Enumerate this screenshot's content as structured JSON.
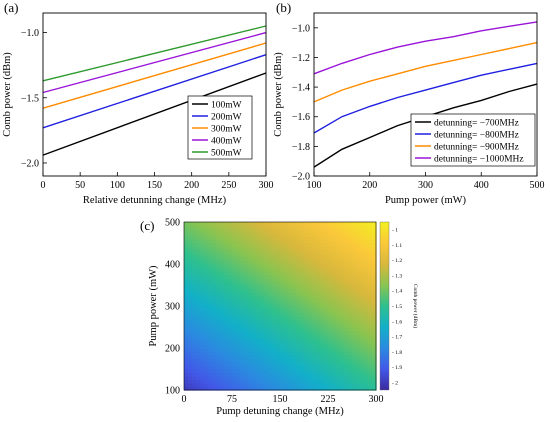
{
  "chart_data": [
    {
      "id": "a",
      "panel_label": "(a)",
      "type": "line",
      "xlabel": "Relative detunning change (MHz)",
      "ylabel": "Comb power  (dBm)",
      "xlim": [
        0,
        300
      ],
      "ylim": [
        -2.1,
        -0.85
      ],
      "xticks": [
        0,
        50,
        100,
        150,
        200,
        250,
        300
      ],
      "yticks": [
        -2.0,
        -1.5,
        -1.0
      ],
      "ytick_labels": [
        "−2.0",
        "−1.5",
        "−1.0"
      ],
      "grid": false,
      "legend": "bottom-right",
      "series": [
        {
          "name": "100mW",
          "color": "#000000",
          "x": [
            0,
            300
          ],
          "y": [
            -1.94,
            -1.31
          ]
        },
        {
          "name": "200mW",
          "color": "#1f1fe0",
          "x": [
            0,
            300
          ],
          "y": [
            -1.73,
            -1.17
          ]
        },
        {
          "name": "300mW",
          "color": "#ff8c00",
          "x": [
            0,
            300
          ],
          "y": [
            -1.58,
            -1.08
          ]
        },
        {
          "name": "400mW",
          "color": "#9a14d8",
          "x": [
            0,
            300
          ],
          "y": [
            -1.46,
            -1.0
          ]
        },
        {
          "name": "500mW",
          "color": "#2e9a2e",
          "x": [
            0,
            300
          ],
          "y": [
            -1.37,
            -0.95
          ]
        }
      ]
    },
    {
      "id": "b",
      "panel_label": "(b)",
      "type": "line",
      "xlabel": "Pump power (mW)",
      "ylabel": "Comb power  (dBm)",
      "xlim": [
        100,
        500
      ],
      "ylim": [
        -2.0,
        -0.9
      ],
      "xticks": [
        100,
        200,
        300,
        400,
        500
      ],
      "yticks": [
        -2.0,
        -1.8,
        -1.6,
        -1.4,
        -1.2,
        -1.0
      ],
      "ytick_labels": [
        "−2.0",
        "−1.8",
        "−1.6",
        "−1.4",
        "−1.2",
        "−1.0"
      ],
      "grid": false,
      "legend": "bottom-right",
      "series": [
        {
          "name": "detunning= −700MHz",
          "color": "#000000",
          "x": [
            100,
            150,
            200,
            250,
            300,
            350,
            400,
            450,
            500
          ],
          "y": [
            -1.94,
            -1.82,
            -1.74,
            -1.66,
            -1.6,
            -1.54,
            -1.49,
            -1.43,
            -1.38
          ]
        },
        {
          "name": "detunning= −800MHz",
          "color": "#1f1fe0",
          "x": [
            100,
            150,
            200,
            250,
            300,
            350,
            400,
            450,
            500
          ],
          "y": [
            -1.71,
            -1.6,
            -1.53,
            -1.47,
            -1.42,
            -1.37,
            -1.32,
            -1.28,
            -1.24
          ]
        },
        {
          "name": "detunning= −900MHz",
          "color": "#ff8c00",
          "x": [
            100,
            150,
            200,
            250,
            300,
            350,
            400,
            450,
            500
          ],
          "y": [
            -1.5,
            -1.42,
            -1.36,
            -1.31,
            -1.26,
            -1.22,
            -1.18,
            -1.14,
            -1.1
          ]
        },
        {
          "name": "detunning= −1000MHz",
          "color": "#9a14d8",
          "x": [
            100,
            150,
            200,
            250,
            300,
            350,
            400,
            450,
            500
          ],
          "y": [
            -1.31,
            -1.24,
            -1.18,
            -1.13,
            -1.09,
            -1.06,
            -1.02,
            -0.99,
            -0.96
          ]
        }
      ]
    },
    {
      "id": "c",
      "panel_label": "(c)",
      "type": "heatmap",
      "xlabel": "Pump detuning change (MHz)",
      "ylabel": "Pump power (mW)",
      "xlim": [
        0,
        300
      ],
      "ylim": [
        100,
        500
      ],
      "xticks": [
        0,
        75,
        150,
        225,
        300
      ],
      "yticks": [
        100,
        200,
        300,
        400,
        500
      ],
      "colorbar": {
        "label": "Comb power (dBm)",
        "range": [
          -2.05,
          -0.95
        ],
        "ticks": [
          -1.0,
          -1.1,
          -1.2,
          -1.3,
          -1.4,
          -1.5,
          -1.6,
          -1.7,
          -1.8,
          -1.9,
          -2.0
        ],
        "tick_labels": [
          "- 1",
          "- 1.1",
          "- 1.2",
          "- 1.3",
          "- 1.4",
          "- 1.5",
          "- 1.6",
          "- 1.7",
          "- 1.8",
          "- 1.9",
          "- 2"
        ],
        "colormap": [
          "#3b2aa0",
          "#4258e8",
          "#2b8ae0",
          "#12b0c8",
          "#2ec08e",
          "#8ac450",
          "#d8b83c",
          "#fbc83a",
          "#f2f020"
        ]
      },
      "corner_values": {
        "x0_y100": -2.0,
        "x300_y100": -1.52,
        "x0_y500": -1.39,
        "x300_y500": -0.96
      }
    }
  ]
}
